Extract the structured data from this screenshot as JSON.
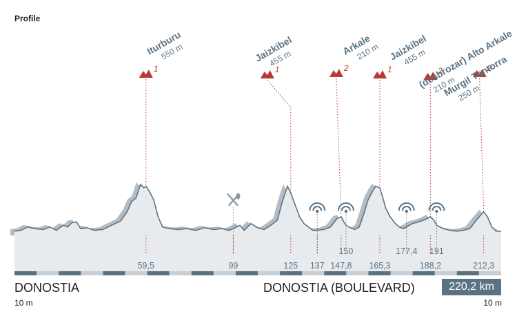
{
  "header": {
    "title": "Profile"
  },
  "route": {
    "start_name": "DONOSTIA",
    "start_altitude": "10 m",
    "finish_name": "DONOSTIA (BOULEVARD)",
    "finish_altitude": "10 m",
    "distance": "220,2 km"
  },
  "chart_data": {
    "type": "area",
    "title": "",
    "xlabel": "",
    "ylabel": "",
    "xlim": [
      0,
      220.2
    ],
    "x_unit": "km",
    "colors": {
      "profile_line": "#5a7384",
      "profile_fill": "#e8ebee",
      "shadow": "#b3bcc4",
      "marker": "#b83a32",
      "accent": "#5a7384"
    },
    "profile": [
      [
        0,
        0.05
      ],
      [
        3,
        0.06
      ],
      [
        6,
        0.1
      ],
      [
        9,
        0.08
      ],
      [
        13,
        0.07
      ],
      [
        16,
        0.1
      ],
      [
        19,
        0.06
      ],
      [
        22,
        0.12
      ],
      [
        24,
        0.1
      ],
      [
        26,
        0.15
      ],
      [
        28,
        0.16
      ],
      [
        30,
        0.08
      ],
      [
        33,
        0.09
      ],
      [
        36,
        0.06
      ],
      [
        40,
        0.07
      ],
      [
        44,
        0.12
      ],
      [
        48,
        0.17
      ],
      [
        51,
        0.28
      ],
      [
        53,
        0.4
      ],
      [
        55,
        0.44
      ],
      [
        57,
        0.6
      ],
      [
        58.5,
        0.56
      ],
      [
        59.5,
        0.58
      ],
      [
        61,
        0.52
      ],
      [
        63,
        0.42
      ],
      [
        65,
        0.22
      ],
      [
        67,
        0.1
      ],
      [
        70,
        0.08
      ],
      [
        74,
        0.07
      ],
      [
        78,
        0.08
      ],
      [
        82,
        0.06
      ],
      [
        86,
        0.09
      ],
      [
        90,
        0.07
      ],
      [
        94,
        0.08
      ],
      [
        97,
        0.06
      ],
      [
        99,
        0.08
      ],
      [
        102,
        0.12
      ],
      [
        104,
        0.06
      ],
      [
        107,
        0.14
      ],
      [
        110,
        0.09
      ],
      [
        113,
        0.07
      ],
      [
        116,
        0.12
      ],
      [
        119,
        0.18
      ],
      [
        121,
        0.38
      ],
      [
        122.5,
        0.5
      ],
      [
        123.5,
        0.58
      ],
      [
        125,
        0.5
      ],
      [
        127,
        0.36
      ],
      [
        129,
        0.22
      ],
      [
        131,
        0.14
      ],
      [
        133,
        0.1
      ],
      [
        135,
        0.06
      ],
      [
        137,
        0.06
      ],
      [
        140,
        0.07
      ],
      [
        143,
        0.1
      ],
      [
        146,
        0.2
      ],
      [
        147.8,
        0.22
      ],
      [
        149,
        0.16
      ],
      [
        150,
        0.12
      ],
      [
        152,
        0.09
      ],
      [
        154,
        0.07
      ],
      [
        156,
        0.1
      ],
      [
        158,
        0.25
      ],
      [
        160,
        0.42
      ],
      [
        162,
        0.52
      ],
      [
        163.5,
        0.58
      ],
      [
        165.3,
        0.56
      ],
      [
        166.5,
        0.46
      ],
      [
        168,
        0.32
      ],
      [
        170,
        0.22
      ],
      [
        172,
        0.15
      ],
      [
        174,
        0.1
      ],
      [
        176,
        0.08
      ],
      [
        177.4,
        0.1
      ],
      [
        180,
        0.14
      ],
      [
        183,
        0.16
      ],
      [
        186,
        0.19
      ],
      [
        188.2,
        0.22
      ],
      [
        190,
        0.17
      ],
      [
        191,
        0.12
      ],
      [
        194,
        0.08
      ],
      [
        197,
        0.06
      ],
      [
        200,
        0.05
      ],
      [
        203,
        0.06
      ],
      [
        206,
        0.08
      ],
      [
        209,
        0.18
      ],
      [
        212.3,
        0.28
      ],
      [
        214,
        0.22
      ],
      [
        216,
        0.1
      ],
      [
        218,
        0.05
      ],
      [
        220.2,
        0.05
      ]
    ],
    "km_labels": [
      "59,5",
      "99",
      "125",
      "137",
      "147,8",
      "165,3",
      "188,2",
      "212,3"
    ],
    "km_label_values": [
      59.5,
      99,
      125,
      137,
      147.8,
      165.3,
      188.2,
      212.3
    ],
    "km_labels_upper": [
      "150",
      "177,4",
      "191"
    ],
    "km_labels_upper_values": [
      150,
      177.4,
      191
    ],
    "climbs": [
      {
        "name": "Iturburu",
        "altitude": "550 m",
        "category": "1",
        "km": 59.5
      },
      {
        "name": "Jaizkibel",
        "altitude": "455 m",
        "category": "1",
        "km": 125
      },
      {
        "name": "Arkale",
        "altitude": "210 m",
        "category": "2",
        "km": 147.8
      },
      {
        "name": "Jaizkibel",
        "altitude": "455 m",
        "category": "1",
        "km": 165.3
      },
      {
        "name": "(desbrozar) Alto Arkale",
        "altitude": "210 m",
        "category": "2",
        "km": 188.2
      },
      {
        "name": "Murgil Tontorra",
        "altitude": "250 m",
        "category": "2",
        "km": 212.3
      }
    ],
    "feed_zone": {
      "km": 99,
      "icon": "fork-knife-icon"
    },
    "checkpoints": [
      {
        "km": 137,
        "icon": "signal-icon"
      },
      {
        "km": 150,
        "icon": "signal-icon"
      },
      {
        "km": 177.4,
        "icon": "signal-icon"
      },
      {
        "km": 191,
        "icon": "signal-icon"
      }
    ]
  }
}
